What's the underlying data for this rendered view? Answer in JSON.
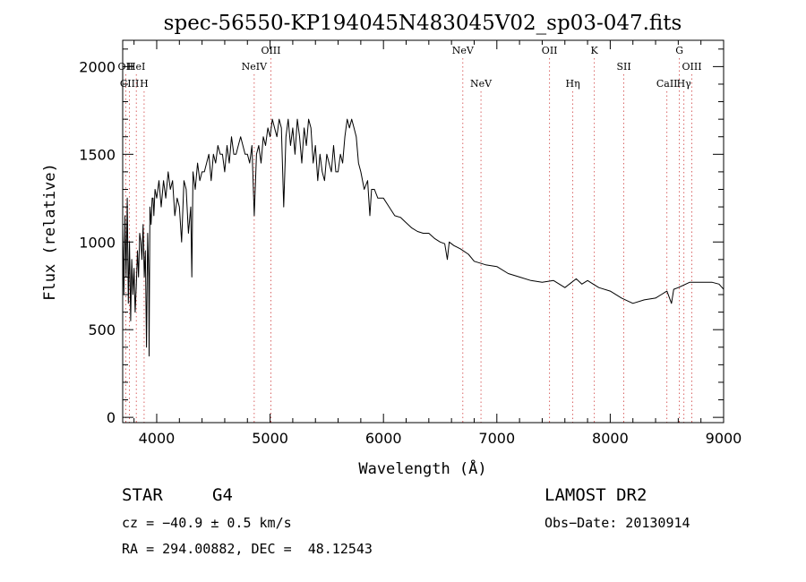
{
  "chart_data": {
    "type": "line",
    "title": "spec-56550-KP194045N483045V02_sp03-047.fits",
    "xlabel": "Wavelength (Å)",
    "ylabel": "Flux (relative)",
    "xlim": [
      3700,
      9000
    ],
    "ylim": [
      -30,
      2150
    ],
    "xticks": [
      4000,
      5000,
      6000,
      7000,
      8000,
      9000
    ],
    "yticks": [
      0,
      500,
      1000,
      1500,
      2000
    ],
    "grid": false,
    "series": [
      {
        "x": [
          3700,
          3710,
          3720,
          3730,
          3740,
          3750,
          3760,
          3770,
          3780,
          3790,
          3800,
          3810,
          3820,
          3830,
          3840,
          3850,
          3860,
          3870,
          3880,
          3890,
          3900,
          3910,
          3920,
          3930,
          3933,
          3940,
          3950,
          3960,
          3968,
          3975,
          3985,
          4000,
          4020,
          4040,
          4060,
          4080,
          4101,
          4120,
          4140,
          4160,
          4180,
          4200,
          4220,
          4240,
          4260,
          4280,
          4300,
          4310,
          4320,
          4340,
          4360,
          4380,
          4400,
          4420,
          4440,
          4460,
          4480,
          4500,
          4520,
          4540,
          4560,
          4580,
          4600,
          4620,
          4640,
          4660,
          4680,
          4700,
          4720,
          4740,
          4760,
          4780,
          4800,
          4820,
          4840,
          4860,
          4880,
          4900,
          4920,
          4940,
          4960,
          4980,
          5000,
          5020,
          5040,
          5060,
          5080,
          5100,
          5120,
          5140,
          5160,
          5180,
          5200,
          5220,
          5240,
          5260,
          5280,
          5300,
          5320,
          5340,
          5360,
          5380,
          5400,
          5420,
          5440,
          5460,
          5480,
          5500,
          5520,
          5540,
          5560,
          5580,
          5600,
          5620,
          5640,
          5660,
          5680,
          5700,
          5720,
          5740,
          5760,
          5780,
          5800,
          5830,
          5860,
          5880,
          5895,
          5920,
          5950,
          6000,
          6050,
          6100,
          6150,
          6200,
          6250,
          6300,
          6350,
          6400,
          6450,
          6500,
          6540,
          6563,
          6580,
          6620,
          6680,
          6750,
          6800,
          6900,
          7000,
          7100,
          7200,
          7300,
          7400,
          7500,
          7600,
          7700,
          7750,
          7800,
          7850,
          7900,
          8000,
          8100,
          8200,
          8300,
          8400,
          8450,
          8500,
          8540,
          8560,
          8600,
          8700,
          8800,
          8900,
          8960,
          9000
        ],
        "y": [
          1100,
          700,
          1150,
          800,
          1250,
          650,
          1000,
          550,
          900,
          700,
          850,
          600,
          750,
          950,
          800,
          1050,
          1000,
          900,
          1100,
          800,
          950,
          400,
          1050,
          800,
          350,
          1200,
          1100,
          1250,
          1250,
          1150,
          1300,
          1250,
          1350,
          1200,
          1350,
          1250,
          1400,
          1300,
          1350,
          1150,
          1250,
          1200,
          1000,
          1350,
          1300,
          1050,
          1200,
          800,
          1400,
          1300,
          1450,
          1350,
          1400,
          1400,
          1450,
          1500,
          1350,
          1500,
          1450,
          1550,
          1500,
          1500,
          1400,
          1550,
          1450,
          1600,
          1500,
          1500,
          1550,
          1600,
          1550,
          1500,
          1500,
          1450,
          1550,
          1150,
          1500,
          1550,
          1450,
          1600,
          1550,
          1650,
          1600,
          1700,
          1650,
          1600,
          1700,
          1650,
          1200,
          1600,
          1700,
          1550,
          1650,
          1500,
          1700,
          1600,
          1450,
          1650,
          1550,
          1700,
          1650,
          1450,
          1550,
          1350,
          1500,
          1400,
          1350,
          1500,
          1450,
          1400,
          1550,
          1400,
          1400,
          1500,
          1450,
          1600,
          1700,
          1650,
          1700,
          1650,
          1600,
          1450,
          1400,
          1300,
          1350,
          1150,
          1300,
          1300,
          1250,
          1250,
          1200,
          1150,
          1140,
          1110,
          1080,
          1060,
          1050,
          1050,
          1020,
          1000,
          990,
          900,
          1000,
          980,
          960,
          930,
          890,
          870,
          860,
          820,
          800,
          780,
          770,
          780,
          740,
          790,
          760,
          780,
          760,
          740,
          720,
          680,
          650,
          670,
          680,
          700,
          720,
          650,
          730,
          740,
          770,
          770,
          770,
          760,
          730
        ]
      }
    ],
    "lines": [
      {
        "label": "OII",
        "x": 3727,
        "row": 1
      },
      {
        "label": "CIII",
        "x": 3760,
        "row": 2
      },
      {
        "label": "HeI",
        "x": 3820,
        "row": 1
      },
      {
        "label": "H",
        "x": 3889,
        "row": 2
      },
      {
        "label": "NeIV",
        "x": 4860,
        "row": 1
      },
      {
        "label": "OIII",
        "x": 5007,
        "row": 0
      },
      {
        "label": "NeV",
        "x": 6700,
        "row": 0
      },
      {
        "label": "NeV",
        "x": 6860,
        "row": 2
      },
      {
        "label": "OII",
        "x": 7465,
        "row": 0
      },
      {
        "label": "Hη",
        "x": 7670,
        "row": 2
      },
      {
        "label": "K",
        "x": 7860,
        "row": 0
      },
      {
        "label": "SII",
        "x": 8120,
        "row": 1
      },
      {
        "label": "G",
        "x": 8610,
        "row": 0
      },
      {
        "label": "CaII",
        "x": 8500,
        "row": 2
      },
      {
        "label": "Hγ",
        "x": 8650,
        "row": 2
      },
      {
        "label": "OIII",
        "x": 8720,
        "row": 1
      }
    ]
  },
  "info": {
    "class": "STAR",
    "subclass": "G4",
    "survey": "LAMOST DR2",
    "cz": "cz = −40.9 ± 0.5 km/s",
    "obs_date": "Obs−Date: 20130914",
    "radec": "RA = 294.00882, DEC =  48.12543"
  },
  "colors": {
    "axis": "#000000",
    "spectrum": "#000000",
    "line_markers": "#d04040",
    "background": "#ffffff"
  }
}
